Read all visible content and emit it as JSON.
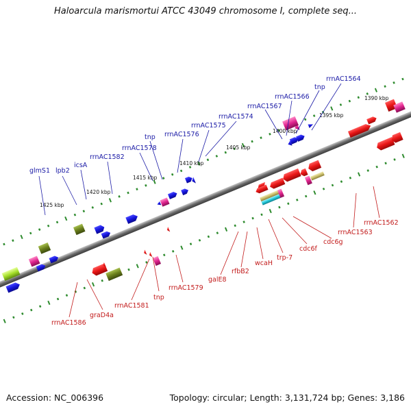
{
  "title": "Haloarcula marismortui ATCC 43049 chromosome I, complete seq...",
  "accession": "Accession: NC_006396",
  "topology": "Topology: circular; Length: 3,131,724 bp; Genes: 3,186",
  "scale_labels": [
    "1390 kbp",
    "1395 kbp",
    "1400 kbp",
    "1405 kbp",
    "1410 kbp",
    "1415 kbp",
    "1420 kbp",
    "1425 kbp"
  ],
  "top_genes": [
    "rrnAC1564",
    "tnp",
    "rrnAC1566",
    "rrnAC1567",
    "rrnAC1574",
    "rrnAC1575",
    "rrnAC1576",
    "tnp",
    "rrnAC1578",
    "rrnAC1582",
    "icsA",
    "lpb2",
    "glmS1"
  ],
  "bottom_genes": [
    "rrnAC1562",
    "rrnAC1563",
    "cdc6g",
    "cdc6f",
    "trp-7",
    "wcaH",
    "rfbB2",
    "galE8",
    "rrnAC1579",
    "tnp",
    "rrnAC1581",
    "graD4a",
    "rrnAC1586"
  ],
  "colors": {
    "forward": "#1515dd",
    "reverse": "#e81515",
    "rna": "#e0258f",
    "other": "#6a7f1c",
    "backbone": "#7a7a7a",
    "top_label": "#1a1aa6",
    "bottom_label": "#c21a1a",
    "tick": "#2e8b2e"
  }
}
